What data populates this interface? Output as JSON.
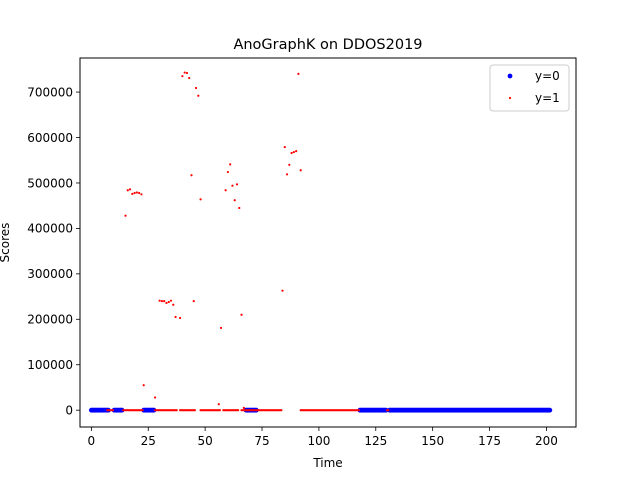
{
  "chart_data": {
    "type": "scatter",
    "title": "AnoGraphK on DDOS2019",
    "xlabel": "Time",
    "ylabel": "Scores",
    "xlim": [
      -5,
      213
    ],
    "ylim": [
      -37000,
      775000
    ],
    "xticks": [
      0,
      25,
      50,
      75,
      100,
      125,
      150,
      175,
      200
    ],
    "xtick_labels": [
      "0",
      "25",
      "50",
      "75",
      "100",
      "125",
      "150",
      "175",
      "200"
    ],
    "yticks": [
      0,
      100000,
      200000,
      300000,
      400000,
      500000,
      600000,
      700000
    ],
    "ytick_labels": [
      "0",
      "100000",
      "200000",
      "300000",
      "400000",
      "500000",
      "600000",
      "700000"
    ],
    "grid": false,
    "legend": {
      "position": "top-right",
      "entries": [
        "y=0",
        "y=1"
      ]
    },
    "series": [
      {
        "name": "y=0",
        "color": "#0000ff",
        "marker_size": 2.4,
        "ranges": [
          [
            0,
            8
          ],
          [
            10,
            14
          ],
          [
            23,
            28
          ],
          [
            68,
            73
          ],
          [
            118,
            130
          ],
          [
            131,
            202
          ]
        ],
        "points": []
      },
      {
        "name": "y=1",
        "color": "#ff0000",
        "marker_size": 1.1,
        "ranges": [
          [
            7,
            10
          ],
          [
            14,
            23
          ],
          [
            28,
            38
          ],
          [
            39,
            46
          ],
          [
            48,
            57
          ],
          [
            58,
            65
          ],
          [
            66,
            84
          ],
          [
            92,
            118
          ],
          [
            130,
            131
          ]
        ],
        "points": [
          [
            15,
            428000
          ],
          [
            16,
            484000
          ],
          [
            17,
            486000
          ],
          [
            18,
            476000
          ],
          [
            19,
            478000
          ],
          [
            20,
            479000
          ],
          [
            21,
            478000
          ],
          [
            22,
            475000
          ],
          [
            23,
            55000
          ],
          [
            28,
            28000
          ],
          [
            30,
            241000
          ],
          [
            31,
            240000
          ],
          [
            32,
            240000
          ],
          [
            33,
            236000
          ],
          [
            34,
            238000
          ],
          [
            35,
            241000
          ],
          [
            36,
            232000
          ],
          [
            37,
            205000
          ],
          [
            39,
            203000
          ],
          [
            40,
            735000
          ],
          [
            41,
            743000
          ],
          [
            42,
            742000
          ],
          [
            43,
            731000
          ],
          [
            44,
            517000
          ],
          [
            45,
            240000
          ],
          [
            46,
            709000
          ],
          [
            47,
            692000
          ],
          [
            48,
            464000
          ],
          [
            56,
            13000
          ],
          [
            57,
            181000
          ],
          [
            59,
            484000
          ],
          [
            60,
            524000
          ],
          [
            61,
            541000
          ],
          [
            62,
            494000
          ],
          [
            63,
            462000
          ],
          [
            64,
            497000
          ],
          [
            65,
            445000
          ],
          [
            66,
            210000
          ],
          [
            67,
            5000
          ],
          [
            84,
            263000
          ],
          [
            85,
            579000
          ],
          [
            86,
            519000
          ],
          [
            87,
            540000
          ],
          [
            88,
            566000
          ],
          [
            89,
            568000
          ],
          [
            90,
            570000
          ],
          [
            91,
            740000
          ],
          [
            92,
            528000
          ]
        ]
      }
    ]
  }
}
